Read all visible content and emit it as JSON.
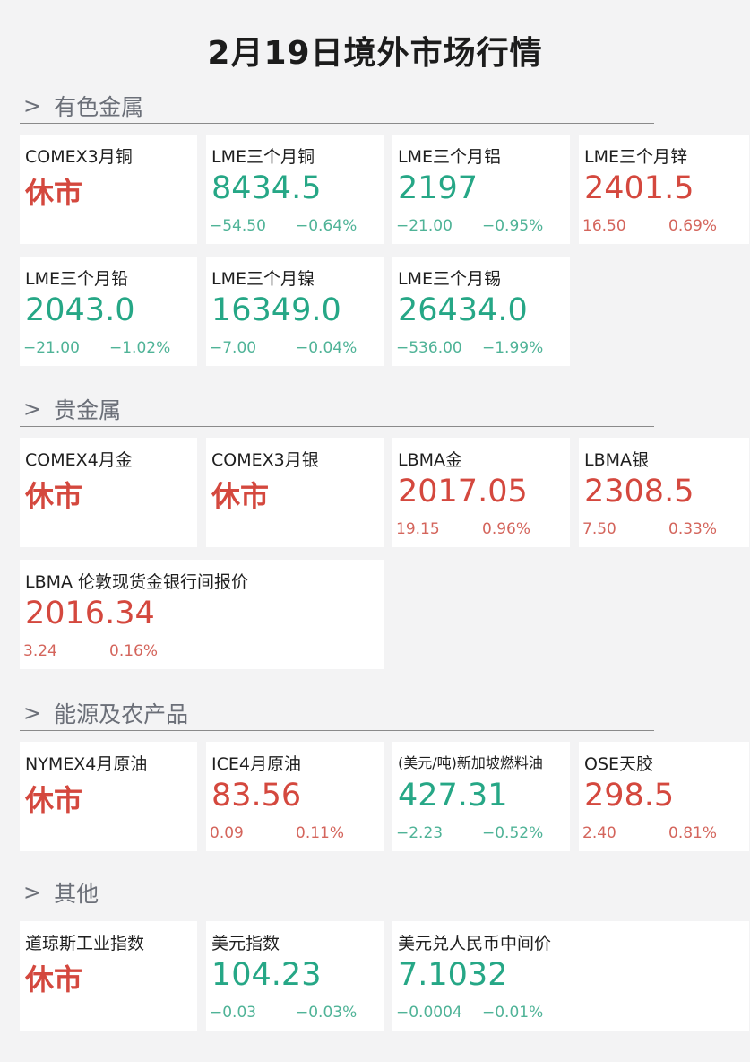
{
  "title": "2月19日境外市场行情",
  "colors": {
    "up": "#d4483e",
    "down": "#26a786",
    "background": "#f3f3f4"
  },
  "sections": [
    {
      "title": "有色金属",
      "icon": "chevron-right-icon",
      "items": [
        {
          "name": "COMEX3月铜",
          "price": "休市",
          "dir": "up",
          "closed": true
        },
        {
          "name": "LME三个月铜",
          "price": "8434.5",
          "change": "−54.50",
          "pct": "−0.64%",
          "dir": "down"
        },
        {
          "name": "LME三个月铝",
          "price": "2197",
          "change": "−21.00",
          "pct": "−0.95%",
          "dir": "down"
        },
        {
          "name": "LME三个月锌",
          "price": "2401.5",
          "change": "16.50",
          "pct": "0.69%",
          "dir": "up"
        },
        {
          "name": "LME三个月铅",
          "price": "2043.0",
          "change": "−21.00",
          "pct": "−1.02%",
          "dir": "down"
        },
        {
          "name": "LME三个月镍",
          "price": "16349.0",
          "change": "−7.00",
          "pct": "−0.04%",
          "dir": "down"
        },
        {
          "name": "LME三个月锡",
          "price": "26434.0",
          "change": "−536.00",
          "pct": "−1.99%",
          "dir": "down"
        }
      ]
    },
    {
      "title": "贵金属",
      "icon": "chevron-right-icon",
      "items": [
        {
          "name": "COMEX4月金",
          "price": "休市",
          "dir": "up",
          "closed": true
        },
        {
          "name": "COMEX3月银",
          "price": "休市",
          "dir": "up",
          "closed": true
        },
        {
          "name": "LBMA金",
          "price": "2017.05",
          "change": "19.15",
          "pct": "0.96%",
          "dir": "up"
        },
        {
          "name": "LBMA银",
          "price": "2308.5",
          "change": "7.50",
          "pct": "0.33%",
          "dir": "up"
        },
        {
          "name": "LBMA 伦敦现货金银行间报价",
          "price": "2016.34",
          "change": "3.24",
          "pct": "0.16%",
          "dir": "up",
          "wide": true
        }
      ]
    },
    {
      "title": "能源及农产品",
      "icon": "chevron-right-icon",
      "items": [
        {
          "name": "NYMEX4月原油",
          "price": "休市",
          "dir": "up",
          "closed": true
        },
        {
          "name": "ICE4月原油",
          "price": "83.56",
          "change": "0.09",
          "pct": "0.11%",
          "dir": "up"
        },
        {
          "name": "(美元/吨)新加坡燃料油",
          "price": "427.31",
          "change": "−2.23",
          "pct": "−0.52%",
          "dir": "down",
          "small": true
        },
        {
          "name": "OSE天胶",
          "price": "298.5",
          "change": "2.40",
          "pct": "0.81%",
          "dir": "up"
        }
      ]
    },
    {
      "title": "其他",
      "icon": "chevron-right-icon",
      "items": [
        {
          "name": "道琼斯工业指数",
          "price": "休市",
          "dir": "up",
          "closed": true
        },
        {
          "name": "美元指数",
          "price": "104.23",
          "change": "−0.03",
          "pct": "−0.03%",
          "dir": "down"
        },
        {
          "name": "美元兑人民币中间价",
          "price": "7.1032",
          "change": "−0.0004",
          "pct": "−0.01%",
          "dir": "down",
          "wide": true
        }
      ]
    }
  ]
}
